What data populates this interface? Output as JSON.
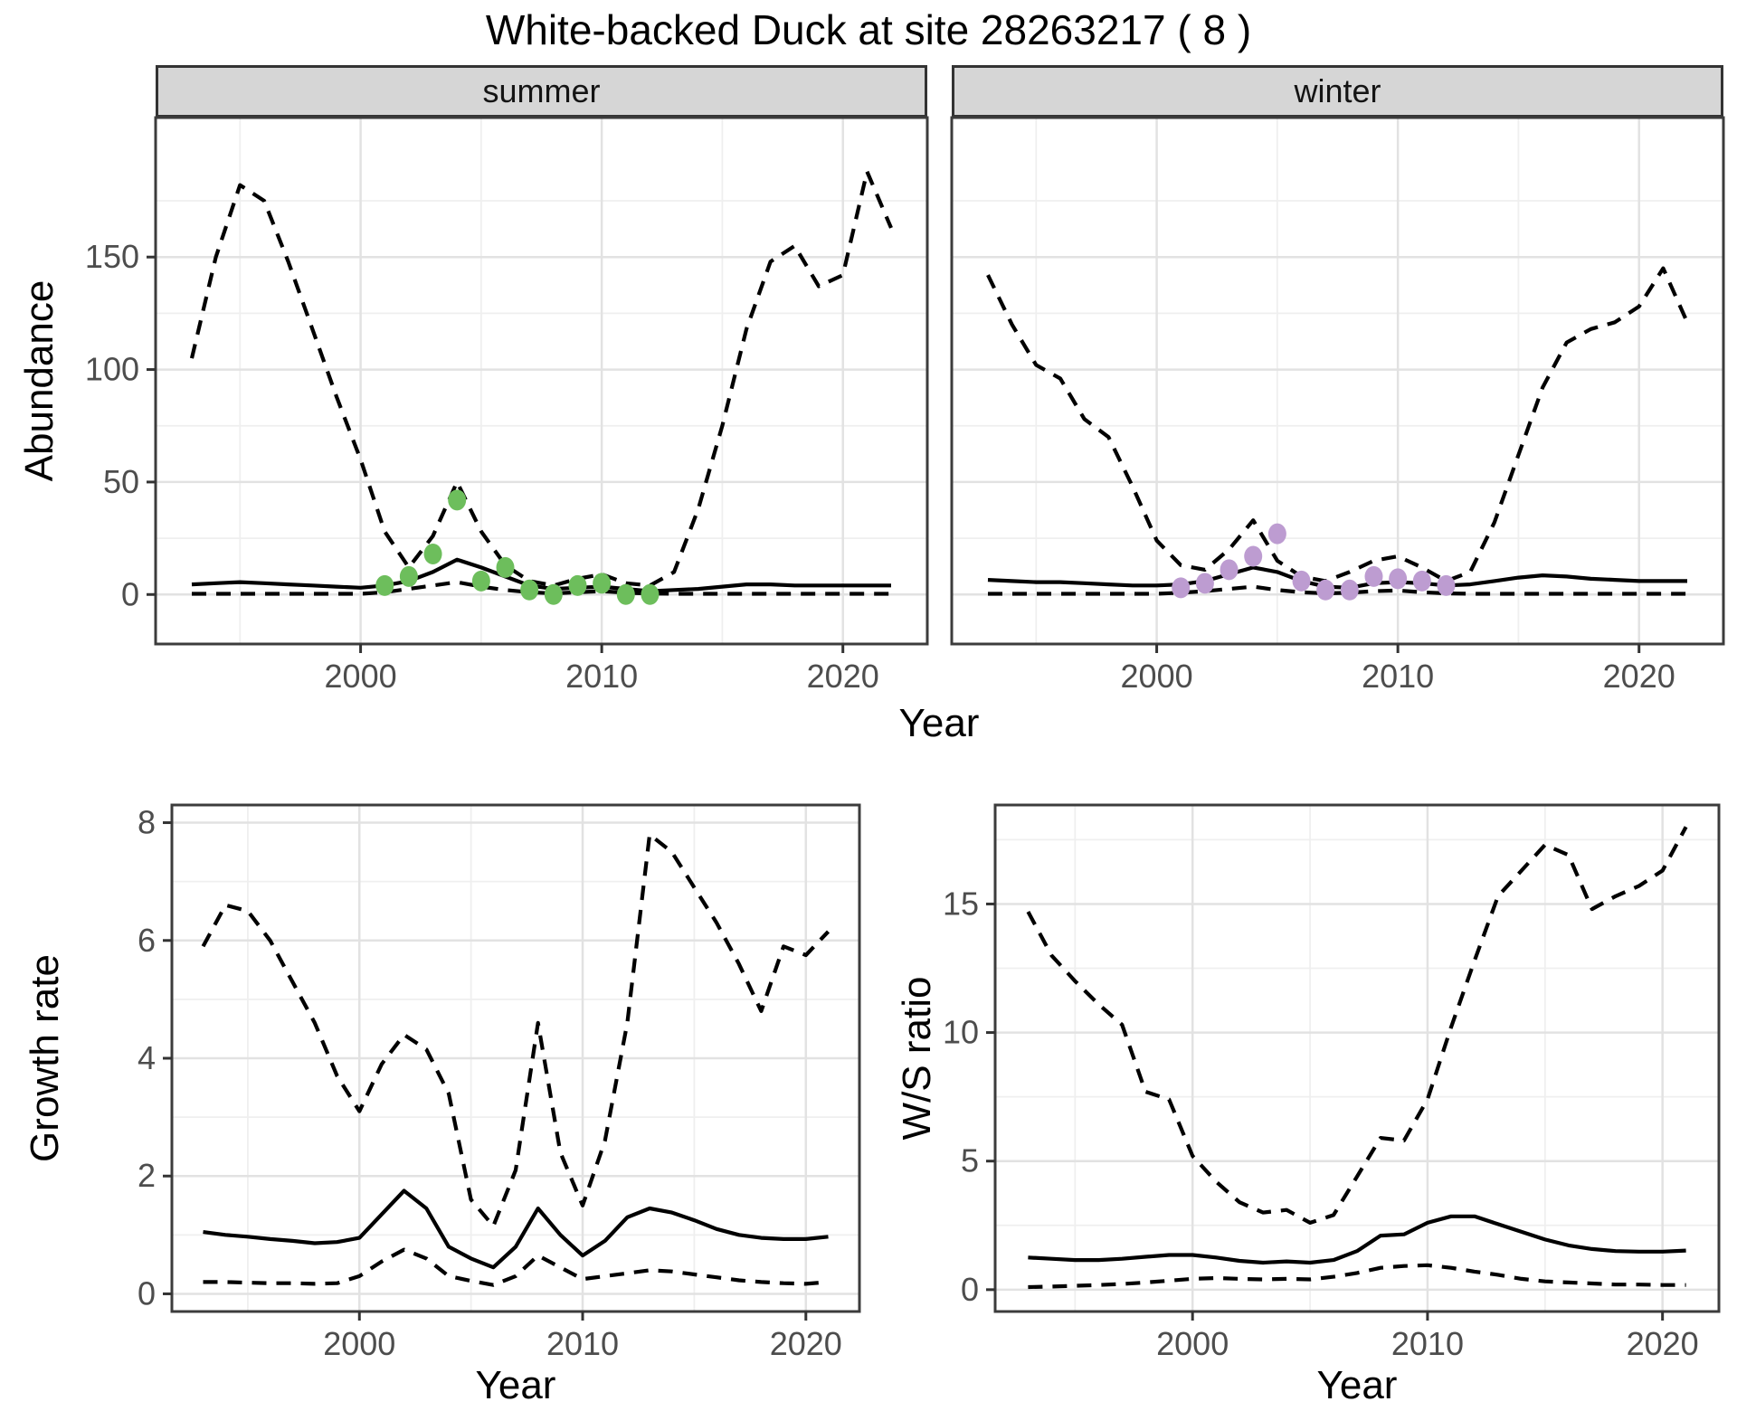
{
  "title": "White-backed Duck at site 28263217 ( 8 )",
  "colors": {
    "line": "#000000",
    "points_summer": "#6dbe5c",
    "points_winter": "#bd9cd1",
    "strip_bg": "#d6d6d6",
    "panel_border": "#3c3c3c",
    "grid_major": "#e2e2e2",
    "grid_minor": "#efefef",
    "tick_label": "#4d4d4d",
    "tick_mark": "#333333"
  },
  "chart_data": [
    {
      "id": "abundance_summer",
      "type": "line",
      "facet_label": "summer",
      "xlabel": "Year",
      "ylabel": "Abundance",
      "xlim": [
        1991.5,
        2023.5
      ],
      "ylim": [
        -22,
        212
      ],
      "x_ticks_major": [
        2000,
        2010,
        2020
      ],
      "x_ticks_minor": [
        1995,
        2005,
        2015
      ],
      "y_ticks_major": [
        0,
        50,
        100,
        150
      ],
      "y_ticks_minor": [
        25,
        75,
        125,
        175
      ],
      "grid": true,
      "legend": "none",
      "years": [
        1993,
        1994,
        1995,
        1996,
        1997,
        1998,
        1999,
        2000,
        2001,
        2002,
        2003,
        2004,
        2005,
        2006,
        2007,
        2008,
        2009,
        2010,
        2011,
        2012,
        2013,
        2014,
        2015,
        2016,
        2017,
        2018,
        2019,
        2020,
        2021,
        2022
      ],
      "series": [
        {
          "name": "upper_95ci",
          "style": "dashed",
          "values": [
            105,
            150,
            182,
            175,
            148,
            118,
            88,
            60,
            28,
            12,
            26,
            50,
            28,
            13,
            6,
            4,
            7,
            9,
            5,
            4,
            10,
            38,
            75,
            118,
            148,
            155,
            137,
            142,
            188,
            163
          ]
        },
        {
          "name": "median",
          "style": "solid",
          "values": [
            4.5,
            5,
            5.5,
            5,
            4.5,
            4,
            3.5,
            3,
            4,
            6,
            10,
            15.5,
            12,
            8,
            4,
            2.5,
            3,
            3.5,
            2.5,
            1.5,
            2,
            2.5,
            3.5,
            4.5,
            4.5,
            4,
            4,
            4,
            4,
            4
          ]
        },
        {
          "name": "lower_95ci",
          "style": "dashed",
          "values": [
            0.3,
            0.3,
            0.3,
            0.3,
            0.3,
            0.3,
            0.3,
            0.3,
            1,
            2.5,
            4,
            5.5,
            3.5,
            2,
            1,
            0.5,
            1,
            1.5,
            0.8,
            0.4,
            0.3,
            0.3,
            0.3,
            0.3,
            0.3,
            0.3,
            0.3,
            0.3,
            0.3,
            0.3
          ]
        }
      ],
      "points": {
        "name": "observed_counts",
        "color": "#6dbe5c",
        "years": [
          2001,
          2002,
          2003,
          2004,
          2005,
          2006,
          2007,
          2008,
          2009,
          2010,
          2011,
          2012
        ],
        "values": [
          4,
          8,
          18,
          42,
          6,
          12,
          2,
          0,
          4,
          5,
          0,
          0
        ]
      }
    },
    {
      "id": "abundance_winter",
      "type": "line",
      "facet_label": "winter",
      "xlabel": "Year",
      "ylabel": "Abundance",
      "xlim": [
        1991.5,
        2023.5
      ],
      "ylim": [
        -22,
        212
      ],
      "x_ticks_major": [
        2000,
        2010,
        2020
      ],
      "x_ticks_minor": [
        1995,
        2005,
        2015
      ],
      "y_ticks_major": [
        0,
        50,
        100,
        150
      ],
      "y_ticks_minor": [
        25,
        75,
        125,
        175
      ],
      "grid": true,
      "legend": "none",
      "years": [
        1993,
        1994,
        1995,
        1996,
        1997,
        1998,
        1999,
        2000,
        2001,
        2002,
        2003,
        2004,
        2005,
        2006,
        2007,
        2008,
        2009,
        2010,
        2011,
        2012,
        2013,
        2014,
        2015,
        2016,
        2017,
        2018,
        2019,
        2020,
        2021,
        2022
      ],
      "series": [
        {
          "name": "upper_95ci",
          "style": "dashed",
          "values": [
            142,
            120,
            102,
            96,
            78,
            70,
            48,
            24,
            13,
            11,
            20,
            33,
            15,
            8,
            6,
            10,
            15,
            17,
            12,
            6,
            10,
            32,
            62,
            92,
            112,
            118,
            121,
            128,
            145,
            121
          ]
        },
        {
          "name": "median",
          "style": "solid",
          "values": [
            6.5,
            6,
            5.5,
            5.5,
            5,
            4.5,
            4,
            4,
            4.5,
            6,
            9,
            12,
            10,
            6,
            3.5,
            3,
            5,
            5.5,
            5,
            4,
            4.5,
            6,
            7.5,
            8.5,
            8,
            7,
            6.5,
            6,
            6,
            6
          ]
        },
        {
          "name": "lower_95ci",
          "style": "dashed",
          "values": [
            0.3,
            0.3,
            0.3,
            0.3,
            0.3,
            0.3,
            0.3,
            0.3,
            0.8,
            1.5,
            2.5,
            3.5,
            2,
            1,
            0.5,
            0.8,
            1.5,
            1.8,
            1,
            0.5,
            0.3,
            0.3,
            0.3,
            0.3,
            0.3,
            0.3,
            0.3,
            0.3,
            0.3,
            0.3
          ]
        }
      ],
      "points": {
        "name": "observed_counts",
        "color": "#bd9cd1",
        "years": [
          2001,
          2002,
          2003,
          2004,
          2005,
          2006,
          2007,
          2008,
          2009,
          2010,
          2011,
          2012
        ],
        "values": [
          3,
          5,
          11,
          17,
          27,
          6,
          2,
          2,
          8,
          7,
          6,
          4
        ]
      }
    },
    {
      "id": "growth_rate",
      "type": "line",
      "facet_label": "",
      "xlabel": "Year",
      "ylabel": "Growth rate",
      "xlim": [
        1991.6,
        2022.4
      ],
      "ylim": [
        -0.3,
        8.3
      ],
      "x_ticks_major": [
        2000,
        2010,
        2020
      ],
      "x_ticks_minor": [
        1995,
        2005,
        2015
      ],
      "y_ticks_major": [
        0,
        2,
        4,
        6,
        8
      ],
      "y_ticks_minor": [
        1,
        3,
        5,
        7
      ],
      "grid": true,
      "legend": "none",
      "years": [
        1993,
        1994,
        1995,
        1996,
        1997,
        1998,
        1999,
        2000,
        2001,
        2002,
        2003,
        2004,
        2005,
        2006,
        2007,
        2008,
        2009,
        2010,
        2011,
        2012,
        2013,
        2014,
        2015,
        2016,
        2017,
        2018,
        2019,
        2020,
        2021
      ],
      "series": [
        {
          "name": "upper_95ci",
          "style": "dashed",
          "values": [
            5.9,
            6.6,
            6.5,
            6.0,
            5.3,
            4.6,
            3.7,
            3.1,
            3.9,
            4.4,
            4.15,
            3.4,
            1.6,
            1.15,
            2.1,
            4.6,
            2.4,
            1.5,
            2.6,
            4.6,
            7.8,
            7.5,
            6.9,
            6.3,
            5.6,
            4.8,
            5.9,
            5.75,
            6.15
          ]
        },
        {
          "name": "median",
          "style": "solid",
          "values": [
            1.05,
            1.0,
            0.97,
            0.93,
            0.9,
            0.86,
            0.88,
            0.95,
            1.35,
            1.75,
            1.45,
            0.8,
            0.6,
            0.45,
            0.8,
            1.45,
            1.0,
            0.65,
            0.9,
            1.3,
            1.45,
            1.38,
            1.25,
            1.1,
            1.0,
            0.95,
            0.93,
            0.93,
            0.97
          ]
        },
        {
          "name": "lower_95ci",
          "style": "dashed",
          "values": [
            0.2,
            0.2,
            0.19,
            0.18,
            0.18,
            0.17,
            0.18,
            0.3,
            0.55,
            0.75,
            0.6,
            0.3,
            0.22,
            0.15,
            0.3,
            0.65,
            0.45,
            0.25,
            0.3,
            0.35,
            0.4,
            0.38,
            0.33,
            0.28,
            0.23,
            0.2,
            0.18,
            0.17,
            0.2
          ]
        }
      ]
    },
    {
      "id": "ws_ratio",
      "type": "line",
      "facet_label": "",
      "xlabel": "Year",
      "ylabel": "W/S ratio",
      "xlim": [
        1991.6,
        2022.4
      ],
      "ylim": [
        -0.85,
        18.85
      ],
      "x_ticks_major": [
        2000,
        2010,
        2020
      ],
      "x_ticks_minor": [
        1995,
        2005,
        2015
      ],
      "y_ticks_major": [
        0,
        5,
        10,
        15
      ],
      "y_ticks_minor": [
        2.5,
        7.5,
        12.5,
        17.5
      ],
      "grid": true,
      "legend": "none",
      "years": [
        1993,
        1994,
        1995,
        1996,
        1997,
        1998,
        1999,
        2000,
        2001,
        2002,
        2003,
        2004,
        2005,
        2006,
        2007,
        2008,
        2009,
        2010,
        2011,
        2012,
        2013,
        2014,
        2015,
        2016,
        2017,
        2018,
        2019,
        2020,
        2021
      ],
      "series": [
        {
          "name": "upper_95ci",
          "style": "dashed",
          "values": [
            14.7,
            13.0,
            12.0,
            11.1,
            10.3,
            7.7,
            7.4,
            5.2,
            4.2,
            3.4,
            3.0,
            3.1,
            2.6,
            2.9,
            4.4,
            5.9,
            5.8,
            7.4,
            10.2,
            12.8,
            15.3,
            16.3,
            17.3,
            16.9,
            14.8,
            15.3,
            15.7,
            16.3,
            18.0
          ]
        },
        {
          "name": "median",
          "style": "solid",
          "values": [
            1.25,
            1.2,
            1.15,
            1.15,
            1.2,
            1.28,
            1.35,
            1.35,
            1.25,
            1.12,
            1.05,
            1.1,
            1.05,
            1.15,
            1.5,
            2.1,
            2.15,
            2.6,
            2.85,
            2.85,
            2.55,
            2.25,
            1.95,
            1.72,
            1.58,
            1.5,
            1.48,
            1.48,
            1.52
          ]
        },
        {
          "name": "lower_95ci",
          "style": "dashed",
          "values": [
            0.1,
            0.12,
            0.15,
            0.18,
            0.22,
            0.28,
            0.35,
            0.42,
            0.45,
            0.42,
            0.4,
            0.42,
            0.4,
            0.5,
            0.65,
            0.85,
            0.92,
            0.95,
            0.85,
            0.7,
            0.58,
            0.42,
            0.32,
            0.28,
            0.24,
            0.2,
            0.2,
            0.18,
            0.18
          ]
        }
      ]
    }
  ]
}
